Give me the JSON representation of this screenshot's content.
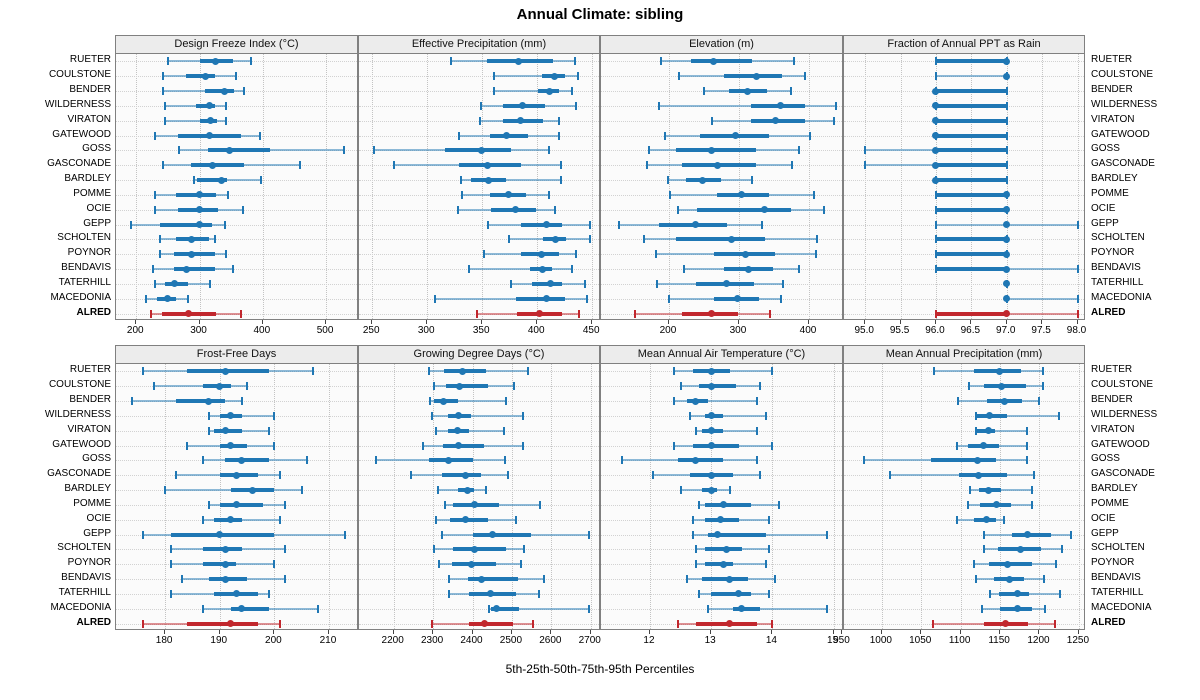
{
  "title": "Annual Climate: sibling",
  "footer": "5th-25th-50th-75th-95th Percentiles",
  "highlight_station": "ALRED",
  "colors": {
    "series_blue": "#1f77b4",
    "highlight_red": "#c1272d",
    "grid": "#c3c3c3",
    "header_bg": "#ececec",
    "panel_border": "#808080",
    "plot_bg": "#fbfbfb"
  },
  "chart_data": {
    "type": "dot-whisker-percentile-trellis",
    "percentiles": [
      5,
      25,
      50,
      75,
      95
    ],
    "legend_note": "thin line = 5th-95th, thick bar = 25th-75th, dot = 50th percentile",
    "rows": [
      "RUETER",
      "COULSTONE",
      "BENDER",
      "WILDERNESS",
      "VIRATON",
      "GATEWOOD",
      "GOSS",
      "GASCONADE",
      "BARDLEY",
      "POMME",
      "OCIE",
      "GEPP",
      "SCHOLTEN",
      "POYNOR",
      "BENDAVIS",
      "TATERHILL",
      "MACEDONIA",
      "ALRED"
    ],
    "panels": [
      {
        "title": "Design Freeze Index (°C)",
        "domain": [
          168,
          552
        ],
        "ticks": [
          200,
          300,
          400,
          500
        ],
        "tick_labels": [
          "200",
          "300",
          "400",
          "500"
        ],
        "values": [
          [
            250,
            300,
            326,
            353,
            382
          ],
          [
            242,
            279,
            310,
            324,
            358
          ],
          [
            242,
            308,
            340,
            355,
            371
          ],
          [
            245,
            295,
            315,
            325,
            342
          ],
          [
            245,
            300,
            317,
            328,
            342
          ],
          [
            229,
            266,
            315,
            366,
            395
          ],
          [
            268,
            313,
            347,
            411,
            529
          ],
          [
            242,
            287,
            321,
            371,
            458
          ],
          [
            292,
            296,
            335,
            343,
            397
          ],
          [
            229,
            263,
            300,
            326,
            345
          ],
          [
            229,
            266,
            300,
            329,
            369
          ],
          [
            192,
            237,
            300,
            320,
            340
          ],
          [
            237,
            263,
            288,
            315,
            324
          ],
          [
            237,
            260,
            287,
            324,
            342
          ],
          [
            226,
            260,
            279,
            324,
            353
          ],
          [
            229,
            245,
            261,
            282,
            316
          ],
          [
            216,
            232,
            250,
            263,
            282
          ],
          [
            224,
            240,
            282,
            326,
            366
          ]
        ]
      },
      {
        "title": "Effective Precipitation (mm)",
        "domain": [
          238,
          458
        ],
        "ticks": [
          250,
          300,
          350,
          400,
          450
        ],
        "tick_labels": [
          "250",
          "300",
          "350",
          "400",
          "450"
        ],
        "values": [
          [
            322,
            354,
            383,
            414,
            434
          ],
          [
            361,
            404,
            416,
            425,
            437
          ],
          [
            361,
            401,
            411,
            420,
            432
          ],
          [
            349,
            369,
            387,
            407,
            435
          ],
          [
            348,
            369,
            385,
            405,
            420
          ],
          [
            329,
            357,
            372,
            392,
            420
          ],
          [
            252,
            316,
            349,
            376,
            411
          ],
          [
            270,
            329,
            355,
            385,
            422
          ],
          [
            331,
            340,
            356,
            372,
            422
          ],
          [
            332,
            357,
            374,
            390,
            411
          ],
          [
            328,
            358,
            380,
            399,
            416
          ],
          [
            355,
            385,
            408,
            423,
            448
          ],
          [
            374,
            405,
            417,
            426,
            448
          ],
          [
            352,
            385,
            404,
            420,
            435
          ],
          [
            338,
            393,
            405,
            413,
            432
          ],
          [
            376,
            395,
            412,
            423,
            443
          ],
          [
            307,
            381,
            408,
            425,
            445
          ],
          [
            345,
            382,
            402,
            423,
            438
          ]
        ]
      },
      {
        "title": "Elevation (m)",
        "domain": [
          103,
          450
        ],
        "ticks": [
          200,
          300,
          400
        ],
        "tick_labels": [
          "200",
          "300",
          "400"
        ],
        "values": [
          [
            188,
            231,
            263,
            319,
            379
          ],
          [
            214,
            279,
            325,
            362,
            395
          ],
          [
            250,
            286,
            312,
            340,
            375
          ],
          [
            186,
            317,
            360,
            395,
            438
          ],
          [
            262,
            317,
            352,
            395,
            436
          ],
          [
            195,
            245,
            295,
            343,
            402
          ],
          [
            171,
            210,
            261,
            324,
            386
          ],
          [
            169,
            219,
            269,
            324,
            376
          ],
          [
            198,
            224,
            248,
            274,
            319
          ],
          [
            202,
            269,
            304,
            343,
            407
          ],
          [
            213,
            240,
            337,
            374,
            421
          ],
          [
            129,
            186,
            238,
            283,
            333
          ],
          [
            164,
            210,
            290,
            337,
            412
          ],
          [
            181,
            264,
            310,
            352,
            410
          ],
          [
            221,
            279,
            314,
            348,
            386
          ],
          [
            183,
            238,
            282,
            321,
            363
          ],
          [
            200,
            264,
            298,
            328,
            360
          ],
          [
            151,
            219,
            261,
            298,
            345
          ]
        ]
      },
      {
        "title": "Fraction of Annual PPT as Rain",
        "domain": [
          94.7,
          98.12
        ],
        "ticks": [
          95.0,
          95.5,
          96.0,
          96.5,
          97.0,
          97.5,
          98.0
        ],
        "tick_labels": [
          "95.0",
          "95.5",
          "96.0",
          "96.5",
          "97.0",
          "97.5",
          "98.0"
        ],
        "values": [
          [
            96,
            96,
            97,
            97,
            97
          ],
          [
            96,
            97,
            97,
            97,
            97
          ],
          [
            96,
            96,
            96,
            97,
            97
          ],
          [
            96,
            96,
            96,
            97,
            97
          ],
          [
            96,
            96,
            96,
            97,
            97
          ],
          [
            96,
            96,
            96,
            97,
            97
          ],
          [
            95,
            96,
            96,
            97,
            97
          ],
          [
            95,
            96,
            96,
            97,
            97
          ],
          [
            96,
            96,
            96,
            97,
            97
          ],
          [
            96,
            96,
            97,
            97,
            97
          ],
          [
            96,
            96,
            97,
            97,
            97
          ],
          [
            96,
            97,
            97,
            97,
            98
          ],
          [
            96,
            96,
            97,
            97,
            97
          ],
          [
            96,
            96,
            97,
            97,
            97
          ],
          [
            96,
            96,
            97,
            97,
            98
          ],
          [
            97,
            97,
            97,
            97,
            97
          ],
          [
            97,
            97,
            97,
            97,
            98
          ],
          [
            96,
            96,
            97,
            97,
            98
          ]
        ]
      },
      {
        "title": "Frost-Free Days",
        "domain": [
          171,
          215.5
        ],
        "ticks": [
          180,
          190,
          200,
          210
        ],
        "tick_labels": [
          "180",
          "190",
          "200",
          "210"
        ],
        "values": [
          [
            176,
            184,
            191,
            199,
            207
          ],
          [
            178,
            187,
            190,
            192,
            195
          ],
          [
            174,
            182,
            188,
            191,
            194
          ],
          [
            188,
            190,
            192,
            194,
            200
          ],
          [
            188,
            189,
            191,
            194,
            199
          ],
          [
            184,
            190,
            192,
            195,
            200
          ],
          [
            187,
            191,
            194,
            199,
            206
          ],
          [
            182,
            190,
            193,
            197,
            201
          ],
          [
            180,
            192,
            196,
            200,
            205
          ],
          [
            188,
            190,
            193,
            198,
            202
          ],
          [
            187,
            189,
            192,
            194,
            201
          ],
          [
            176,
            181,
            190,
            200,
            213
          ],
          [
            181,
            187,
            191,
            194,
            202
          ],
          [
            181,
            187,
            191,
            193,
            200
          ],
          [
            183,
            188,
            191,
            195,
            202
          ],
          [
            181,
            189,
            193,
            197,
            199
          ],
          [
            187,
            192,
            194,
            199,
            208
          ],
          [
            176,
            184,
            192,
            197,
            201
          ]
        ]
      },
      {
        "title": "Growing Degree Days (°C)",
        "domain": [
          2112,
          2726
        ],
        "ticks": [
          2200,
          2300,
          2400,
          2500,
          2600,
          2700
        ],
        "tick_labels": [
          "2200",
          "2300",
          "2400",
          "2500",
          "2600",
          "2700"
        ],
        "values": [
          [
            2290,
            2328,
            2375,
            2434,
            2540
          ],
          [
            2303,
            2333,
            2367,
            2439,
            2506
          ],
          [
            2292,
            2303,
            2326,
            2362,
            2485
          ],
          [
            2297,
            2337,
            2364,
            2396,
            2527
          ],
          [
            2307,
            2337,
            2362,
            2392,
            2481
          ],
          [
            2274,
            2324,
            2364,
            2430,
            2527
          ],
          [
            2155,
            2290,
            2339,
            2400,
            2483
          ],
          [
            2244,
            2323,
            2381,
            2422,
            2489
          ],
          [
            2312,
            2362,
            2388,
            2405,
            2434
          ],
          [
            2330,
            2350,
            2405,
            2468,
            2572
          ],
          [
            2307,
            2344,
            2383,
            2440,
            2510
          ],
          [
            2323,
            2400,
            2450,
            2549,
            2696
          ],
          [
            2302,
            2350,
            2405,
            2485,
            2531
          ],
          [
            2316,
            2347,
            2398,
            2460,
            2523
          ],
          [
            2341,
            2388,
            2422,
            2515,
            2582
          ],
          [
            2340,
            2392,
            2445,
            2510,
            2568
          ],
          [
            2443,
            2447,
            2460,
            2519,
            2696
          ],
          [
            2297,
            2392,
            2430,
            2502,
            2553
          ]
        ]
      },
      {
        "title": "Mean Annual Air Temperature (°C)",
        "domain": [
          11.2,
          15.17
        ],
        "ticks": [
          12,
          13,
          14,
          15
        ],
        "tick_labels": [
          "12",
          "13",
          "14",
          "15"
        ],
        "values": [
          [
            12.4,
            12.7,
            13.0,
            13.3,
            14.0
          ],
          [
            12.5,
            12.8,
            13.0,
            13.4,
            13.8
          ],
          [
            12.4,
            12.6,
            12.75,
            12.95,
            13.75
          ],
          [
            12.65,
            12.9,
            13.0,
            13.2,
            13.9
          ],
          [
            12.75,
            12.85,
            13.0,
            13.2,
            13.75
          ],
          [
            12.4,
            12.7,
            13.0,
            13.45,
            14.0
          ],
          [
            11.55,
            12.45,
            12.75,
            13.2,
            13.75
          ],
          [
            12.05,
            12.65,
            13.0,
            13.35,
            13.8
          ],
          [
            12.5,
            12.85,
            13.0,
            13.1,
            13.3
          ],
          [
            12.8,
            12.9,
            13.2,
            13.65,
            14.1
          ],
          [
            12.7,
            12.9,
            13.15,
            13.45,
            13.95
          ],
          [
            12.7,
            12.95,
            13.1,
            13.9,
            14.9
          ],
          [
            12.75,
            12.9,
            13.25,
            13.5,
            13.95
          ],
          [
            12.75,
            12.9,
            13.2,
            13.35,
            13.9
          ],
          [
            12.6,
            12.85,
            13.3,
            13.6,
            14.05
          ],
          [
            12.8,
            13.0,
            13.45,
            13.65,
            13.95
          ],
          [
            12.95,
            13.35,
            13.5,
            13.8,
            14.9
          ],
          [
            12.45,
            12.75,
            13.3,
            13.75,
            14.0
          ]
        ]
      },
      {
        "title": "Mean Annual Precipitation (mm)",
        "domain": [
          952,
          1259
        ],
        "ticks": [
          950,
          1000,
          1050,
          1100,
          1150,
          1200,
          1250
        ],
        "tick_labels": [
          "950",
          "1000",
          "1050",
          "1100",
          "1150",
          "1200",
          "1250"
        ],
        "values": [
          [
            1066,
            1117,
            1149,
            1176,
            1204
          ],
          [
            1110,
            1130,
            1152,
            1183,
            1205
          ],
          [
            1097,
            1134,
            1155,
            1178,
            1200
          ],
          [
            1119,
            1121,
            1137,
            1159,
            1225
          ],
          [
            1119,
            1121,
            1135,
            1143,
            1184
          ],
          [
            1095,
            1109,
            1129,
            1149,
            1184
          ],
          [
            978,
            1063,
            1121,
            1145,
            1184
          ],
          [
            1010,
            1098,
            1123,
            1159,
            1193
          ],
          [
            1112,
            1123,
            1135,
            1151,
            1191
          ],
          [
            1109,
            1125,
            1145,
            1164,
            1191
          ],
          [
            1095,
            1117,
            1133,
            1145,
            1155
          ],
          [
            1130,
            1165,
            1185,
            1215,
            1240
          ],
          [
            1130,
            1147,
            1176,
            1202,
            1229
          ],
          [
            1117,
            1136,
            1160,
            1191,
            1221
          ],
          [
            1119,
            1142,
            1162,
            1180,
            1206
          ],
          [
            1137,
            1149,
            1172,
            1187,
            1226
          ],
          [
            1127,
            1150,
            1172,
            1190,
            1207
          ],
          [
            1065,
            1130,
            1157,
            1185,
            1220
          ]
        ]
      }
    ]
  }
}
